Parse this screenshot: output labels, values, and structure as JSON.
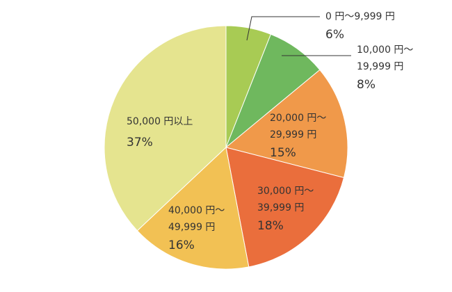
{
  "chart_data": {
    "type": "pie",
    "title": "",
    "start_angle_deg": 0,
    "direction": "clockwise",
    "slices": [
      {
        "label_lines": [
          "0 円〜9,999 円"
        ],
        "value": 6,
        "value_label": "6%",
        "color": "#a8cb54"
      },
      {
        "label_lines": [
          "10,000 円〜",
          "19,999 円"
        ],
        "value": 8,
        "value_label": "8%",
        "color": "#6fb85e"
      },
      {
        "label_lines": [
          "20,000 円〜",
          "29,999 円"
        ],
        "value": 15,
        "value_label": "15%",
        "color": "#f0994a"
      },
      {
        "label_lines": [
          "30,000 円〜",
          "39,999 円"
        ],
        "value": 18,
        "value_label": "18%",
        "color": "#ea6e3c"
      },
      {
        "label_lines": [
          "40,000 円〜",
          "49,999 円"
        ],
        "value": 16,
        "value_label": "16%",
        "color": "#f2c154"
      },
      {
        "label_lines": [
          "50,000 円以上"
        ],
        "value": 37,
        "value_label": "37%",
        "color": "#e5e48f"
      }
    ]
  }
}
